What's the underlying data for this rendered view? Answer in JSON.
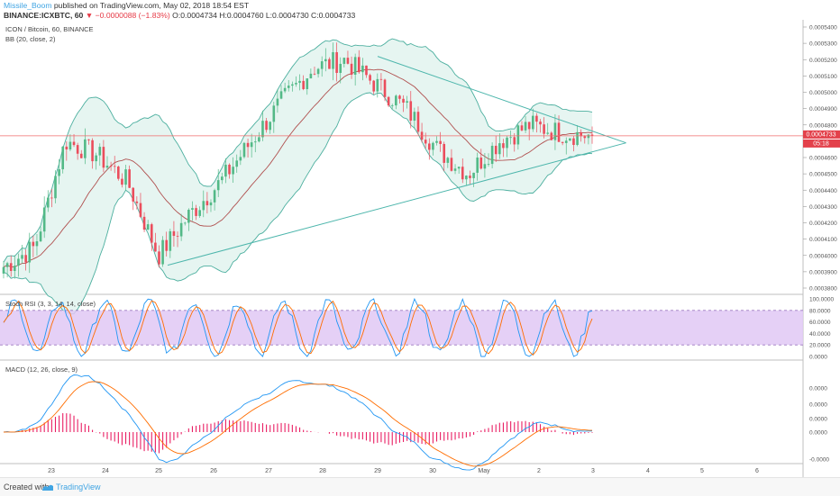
{
  "header": {
    "username": "Missile_Boom",
    "published_text": " published on TradingView.com, May 02, 2018 18:54 EST",
    "symbol_line": "BINANCE:ICXBTC, 60",
    "change_text": "−0.0000088 (−1.83%)",
    "ohlc_text": "O:0.0004734 H:0.0004760 L:0.0004730 C:0.0004733"
  },
  "colors": {
    "up": "#53b987",
    "down": "#eb4d5c",
    "bb_band": "#4caf9f",
    "bb_fill": "#e6f5f1",
    "bb_basis": "#b0504f",
    "trendline": "#4db6ac",
    "rsi_band": "#e1c8f5",
    "rsi_k": "#2196f3",
    "rsi_d": "#ff6d00",
    "macd_line": "#2196f3",
    "macd_signal": "#ff6d00",
    "macd_hist": "#e91e63",
    "price_line": "#f06b6b",
    "price_label_bg": "#e3414b"
  },
  "panes": {
    "price": {
      "legend_title": "ICON / Bitcoin, 60, BINANCE",
      "legend_indicator": "BB (20, close, 2)",
      "price_ticks": [
        "0.0005400",
        "0.0005300",
        "0.0005200",
        "0.0005100",
        "0.0005000",
        "0.0004900",
        "0.0004800",
        "0.0004700",
        "0.0004600",
        "0.0004500",
        "0.0004400",
        "0.0004300",
        "0.0004200",
        "0.0004100",
        "0.0004000",
        "0.0003900",
        "0.0003800"
      ],
      "last_price_label": "0.0004733",
      "countdown_label": "05:18"
    },
    "rsi": {
      "legend": "Stoch RSI (3, 3, 14, 14, close)",
      "ticks": [
        "100.0000",
        "80.0000",
        "60.0000",
        "40.0000",
        "20.0000",
        "0.0000"
      ]
    },
    "macd": {
      "legend": "MACD (12, 26, close, 9)",
      "ticks": [
        "0.0000",
        "0.0000",
        "0.0000",
        "0.0000",
        "-0.0000"
      ]
    }
  },
  "time_axis": [
    "23",
    "24",
    "25",
    "26",
    "27",
    "28",
    "29",
    "30",
    "May",
    "2",
    "3",
    "4",
    "5",
    "6"
  ],
  "footer": {
    "created_with": "Created with",
    "brand": "TradingView",
    "logo_icon": "tradingview-logo-icon"
  },
  "chart_data": {
    "type": "candlestick",
    "symbol": "ICXBTC",
    "interval": "60",
    "x": [
      "23",
      "24",
      "25",
      "26",
      "27",
      "28",
      "29",
      "30",
      "May",
      "2",
      "3"
    ],
    "close_path": [
      0.000393,
      0.000405,
      0.00047,
      0.000462,
      0.000445,
      0.0004,
      0.000425,
      0.000445,
      0.00047,
      0.000495,
      0.000515,
      0.00052,
      0.000505,
      0.00049,
      0.000465,
      0.00045,
      0.00047,
      0.00048,
      0.000475,
      0.0004733
    ],
    "last_close": 0.0004733,
    "ylim": [
      0.00038,
      0.00054
    ],
    "triangle": {
      "upper_from": [
        "29",
        0.000522
      ],
      "upper_to": [
        "3.6",
        0.000469
      ],
      "lower_from": [
        "25",
        0.000394
      ],
      "lower_to": [
        "3.6",
        0.000469
      ]
    },
    "stoch_rsi_ylim": [
      0,
      100
    ],
    "stoch_rsi_band": [
      20,
      80
    ]
  }
}
